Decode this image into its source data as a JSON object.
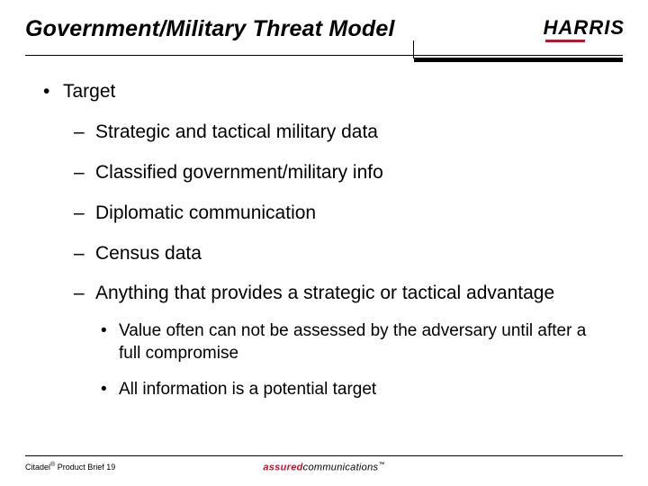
{
  "colors": {
    "accent": "#c8102e",
    "text": "#000000",
    "background": "#ffffff"
  },
  "header": {
    "title": "Government/Military Threat Model",
    "logo": "HARRIS"
  },
  "bullets": {
    "lvl1_marker": "•",
    "lvl2_marker": "–",
    "lvl3_marker": "•",
    "target_label": "Target",
    "targets": [
      "Strategic and tactical military data",
      "Classified government/military info",
      "Diplomatic communication",
      "Census data",
      "Anything that provides a strategic or tactical advantage"
    ],
    "sub": [
      "Value often can not be assessed by the adversary until after a full compromise",
      "All information is a potential target"
    ]
  },
  "footer": {
    "product": "Citadel",
    "reg": "®",
    "rest": " Product Brief 19",
    "tagline_accent": "assured",
    "tagline_rest": "communications",
    "tm": "™"
  }
}
